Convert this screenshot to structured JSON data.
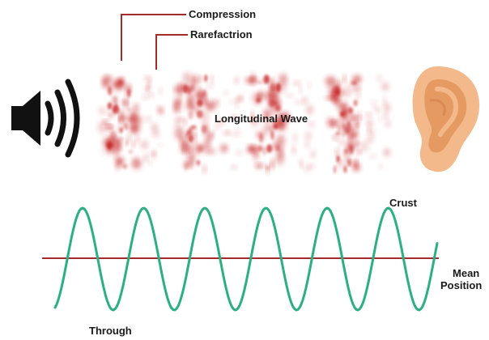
{
  "labels": {
    "compression": "Compression",
    "rarefaction": "Rarefactrion",
    "longitudinal_wave": "Longitudinal Wave",
    "crust": "Crust",
    "mean_position_line1": "Mean",
    "mean_position_line2": "Position",
    "through": "Through"
  },
  "icons": {
    "speaker": "speaker-icon",
    "ear": "ear-icon"
  },
  "colors": {
    "pointer_lines": "#a52a2a",
    "compression_red": "#c41a1a",
    "wave": "#2bb083",
    "mean_line": "#a52a2a",
    "ear_skin": "#f3b98a",
    "ear_inner": "#e59a62"
  },
  "wave": {
    "cycles": 6
  }
}
